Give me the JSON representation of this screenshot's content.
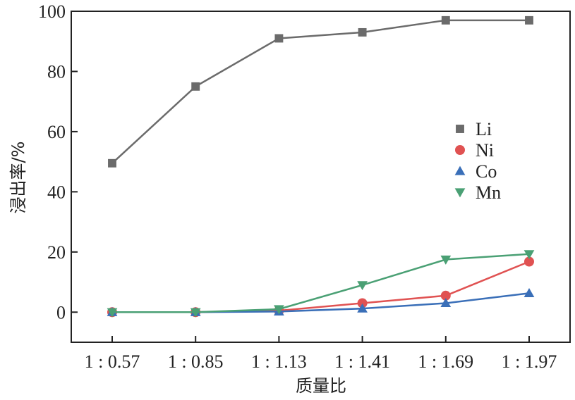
{
  "chart_data": {
    "type": "line",
    "categories": [
      "1 : 0.57",
      "1 : 0.85",
      "1 : 1.13",
      "1 : 1.41",
      "1 : 1.69",
      "1 : 1.97"
    ],
    "series": [
      {
        "name": "Li",
        "color": "#6b6b6b",
        "marker": "square",
        "values": [
          49.5,
          75,
          91,
          93,
          97,
          97
        ]
      },
      {
        "name": "Ni",
        "color": "#e05252",
        "marker": "circle",
        "values": [
          0,
          0,
          0.5,
          3,
          5.5,
          16.8
        ]
      },
      {
        "name": "Co",
        "color": "#3a6fb8",
        "marker": "triangle-up",
        "values": [
          0,
          0,
          0.2,
          1.2,
          3,
          6.3
        ]
      },
      {
        "name": "Mn",
        "color": "#4aa074",
        "marker": "triangle-down",
        "values": [
          0,
          0,
          1,
          9,
          17.5,
          19.3
        ]
      }
    ],
    "xlabel": "质量比",
    "ylabel": "浸出率/%",
    "ylim": [
      -10,
      100
    ],
    "yticks": [
      0,
      20,
      40,
      60,
      80,
      100
    ],
    "grid": false,
    "legend": "right-middle"
  }
}
